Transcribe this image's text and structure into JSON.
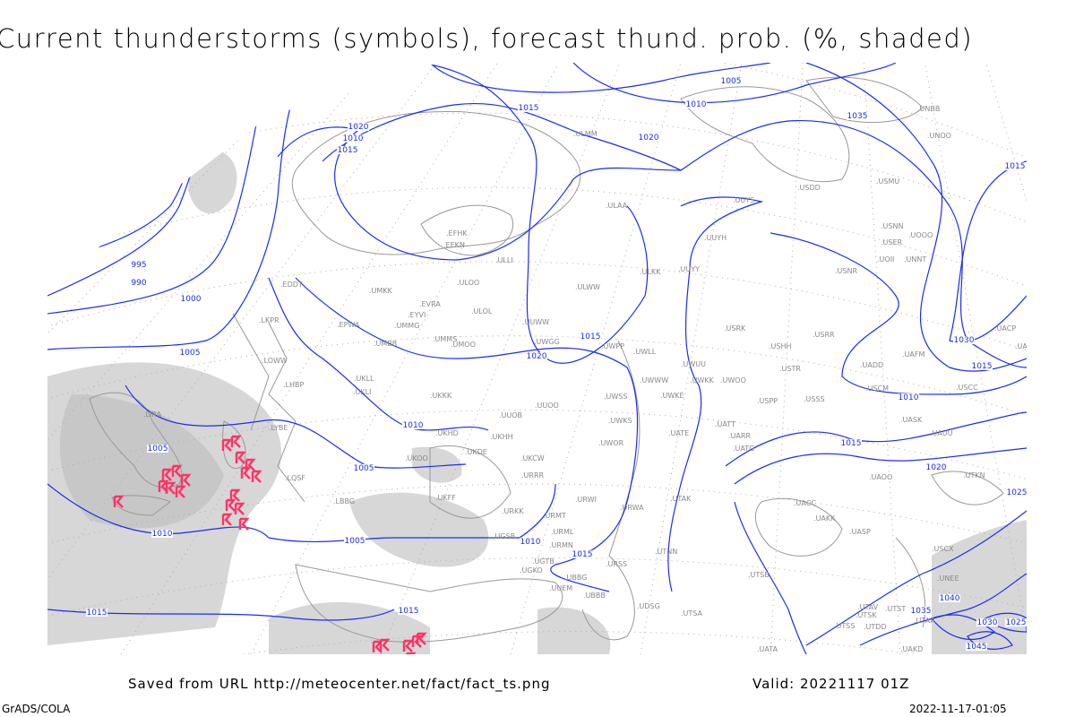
{
  "title": "Current thunderstorms (symbols), forecast thund. prob. (%, shaded)",
  "footer": {
    "source": "Saved from URL http://meteocenter.net/fact/fact_ts.png",
    "valid": "Valid: 20221117 01Z",
    "software": "GrADS/COLA",
    "timestamp": "2022-11-17-01:05"
  },
  "colors": {
    "isobar": "#1c2cf0",
    "coast": "#999999",
    "thunderstorm": "#ff3366",
    "shading": "#d0d0d0"
  },
  "isobar_labels": [
    "1005",
    "1010",
    "1015",
    "1020",
    "1010",
    "1015",
    "1020",
    "995",
    "990",
    "1000",
    "1005",
    "1005",
    "1005",
    "1010",
    "1015",
    "1020",
    "1015",
    "1015",
    "1010",
    "1015",
    "1020",
    "1025",
    "1030",
    "1035",
    "1010",
    "1015",
    "1015",
    "1035",
    "1040",
    "1030",
    "1025",
    "1045",
    "1010",
    "1005",
    "1015"
  ],
  "stations": [
    "EDDT",
    "LKPR",
    "LOWW",
    "LHBP",
    "LIRA",
    "LYBE",
    "LQSF",
    "LBBG",
    "EPWA",
    "UMMG",
    "UMMS",
    "UMBB",
    "UMOO",
    "UMKK",
    "EYVI",
    "EVRA",
    "ULOO",
    "ULOL",
    "EEKN",
    "EFHK",
    "ULLI",
    "ULMM",
    "ULAA",
    "ULWW",
    "ULKK",
    "UUYY",
    "UUYH",
    "UUYS",
    "USDD",
    "USMU",
    "UKLL",
    "UKLI",
    "UKKK",
    "UUOB",
    "UUOO",
    "UKHH",
    "UKHD",
    "UKOO",
    "UKDE",
    "UKCW",
    "UKFF",
    "URKK",
    "URRR",
    "URWI",
    "URWA",
    "URMT",
    "URMN",
    "URML",
    "URSS",
    "UGSB",
    "UGKO",
    "UGTB",
    "UBBG",
    "UBBB",
    "UDSG",
    "UUEM",
    "UUWW",
    "UWGG",
    "UWPP",
    "UWSS",
    "UWKS",
    "UWLL",
    "UWWW",
    "UWKE",
    "UWUU",
    "UWKK",
    "UWOO",
    "UWOR",
    "UATT",
    "UARR",
    "UATG",
    "UATE",
    "UTAK",
    "UTNN",
    "UTSA",
    "UTSB",
    "UTAV",
    "UTSK",
    "UTSS",
    "UTDD",
    "UTST",
    "UTAA",
    "UAKD",
    "UATA",
    "UAOO",
    "UACC",
    "UAKK",
    "UASP",
    "UASK",
    "UAUU",
    "USCC",
    "USCM",
    "USSS",
    "USTR",
    "USPP",
    "USHH",
    "USRR",
    "USRK",
    "USNR",
    "USNN",
    "USER",
    "UOOO",
    "UOII",
    "UNNT",
    "UNBB",
    "UNOO",
    "UACP",
    "UAAH",
    "UAFM",
    "UADD",
    "UTKN",
    "USCX",
    "UNEE"
  ]
}
